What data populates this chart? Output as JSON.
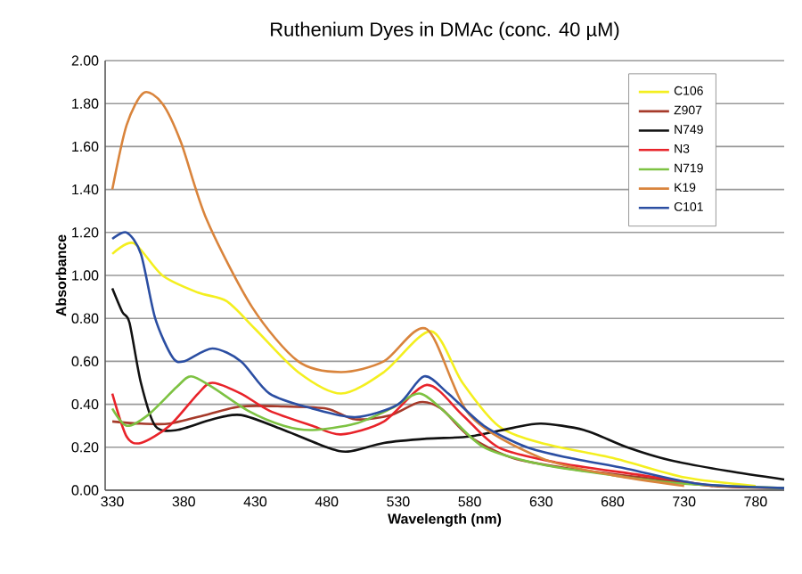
{
  "chart_data": {
    "type": "line",
    "title": "Ruthenium Dyes in DMAc (conc. 40 µM)",
    "xlabel": "Wavelength (nm)",
    "ylabel": "Absorbance",
    "xlim": [
      325,
      800
    ],
    "ylim": [
      0,
      2
    ],
    "xticks": [
      330,
      380,
      430,
      480,
      530,
      580,
      630,
      680,
      730,
      780
    ],
    "yticks": [
      {
        "value": 0,
        "label": "0.00"
      },
      {
        "value": 0.2,
        "label": "0.20"
      },
      {
        "value": 0.4,
        "label": "0.40"
      },
      {
        "value": 0.6,
        "label": "0.60"
      },
      {
        "value": 0.8,
        "label": "0.80"
      },
      {
        "value": 1,
        "label": "1.00"
      },
      {
        "value": 1.2,
        "label": "1.20"
      },
      {
        "value": 1.4,
        "label": "1.40"
      },
      {
        "value": 1.6,
        "label": "1.60"
      },
      {
        "value": 1.8,
        "label": "1.80"
      },
      {
        "value": 2,
        "label": "2.00"
      }
    ],
    "grid": "y",
    "legend": "top right",
    "marker": "none",
    "line_style": "solid",
    "series": [
      {
        "name": "C106",
        "color": "#f4ef1f",
        "x": [
          330,
          345,
          365,
          390,
          410,
          430,
          460,
          490,
          520,
          553,
          575,
          600,
          630,
          680,
          730,
          780
        ],
        "values": [
          1.1,
          1.15,
          1.0,
          0.92,
          0.88,
          0.75,
          0.55,
          0.45,
          0.55,
          0.74,
          0.5,
          0.3,
          0.22,
          0.15,
          0.06,
          0.02
        ]
      },
      {
        "name": "Z907",
        "color": "#a63a2a",
        "x": [
          330,
          350,
          370,
          395,
          420,
          450,
          480,
          500,
          525,
          545,
          560,
          580,
          610,
          650,
          700,
          750,
          800
        ],
        "values": [
          0.32,
          0.31,
          0.31,
          0.35,
          0.39,
          0.39,
          0.38,
          0.33,
          0.35,
          0.41,
          0.38,
          0.25,
          0.15,
          0.1,
          0.06,
          0.02,
          0.01
        ]
      },
      {
        "name": "N749",
        "color": "#111111",
        "x": [
          330,
          337,
          342,
          350,
          360,
          375,
          400,
          420,
          450,
          480,
          495,
          520,
          550,
          580,
          610,
          630,
          660,
          690,
          720,
          760,
          800
        ],
        "values": [
          0.94,
          0.83,
          0.78,
          0.5,
          0.3,
          0.28,
          0.33,
          0.35,
          0.28,
          0.2,
          0.18,
          0.22,
          0.24,
          0.25,
          0.29,
          0.31,
          0.28,
          0.2,
          0.14,
          0.09,
          0.05
        ]
      },
      {
        "name": "N3",
        "color": "#e8232a",
        "x": [
          330,
          340,
          350,
          370,
          390,
          400,
          420,
          440,
          470,
          490,
          520,
          550,
          575,
          600,
          640,
          700,
          750
        ],
        "values": [
          0.45,
          0.25,
          0.22,
          0.3,
          0.45,
          0.5,
          0.45,
          0.37,
          0.3,
          0.26,
          0.32,
          0.49,
          0.35,
          0.2,
          0.13,
          0.07,
          0.02
        ]
      },
      {
        "name": "N719",
        "color": "#7dc242",
        "x": [
          330,
          340,
          355,
          375,
          385,
          400,
          425,
          450,
          470,
          500,
          525,
          545,
          565,
          590,
          630,
          680,
          730,
          800
        ],
        "values": [
          0.38,
          0.3,
          0.35,
          0.48,
          0.53,
          0.48,
          0.37,
          0.3,
          0.28,
          0.31,
          0.38,
          0.45,
          0.35,
          0.2,
          0.12,
          0.07,
          0.03,
          0.01
        ]
      },
      {
        "name": "K19",
        "color": "#d9843c",
        "x": [
          330,
          340,
          352,
          365,
          378,
          396,
          428,
          460,
          490,
          520,
          550,
          580,
          630,
          680,
          730
        ],
        "values": [
          1.4,
          1.7,
          1.85,
          1.8,
          1.62,
          1.26,
          0.85,
          0.6,
          0.55,
          0.6,
          0.75,
          0.35,
          0.15,
          0.07,
          0.02
        ]
      },
      {
        "name": "C101",
        "color": "#2b4ea2",
        "x": [
          330,
          340,
          350,
          360,
          372,
          380,
          400,
          420,
          440,
          470,
          500,
          530,
          548,
          565,
          590,
          620,
          650,
          690,
          740,
          800
        ],
        "values": [
          1.17,
          1.2,
          1.1,
          0.8,
          0.62,
          0.6,
          0.66,
          0.6,
          0.45,
          0.38,
          0.34,
          0.4,
          0.53,
          0.45,
          0.3,
          0.2,
          0.15,
          0.1,
          0.03,
          0.01
        ]
      }
    ]
  }
}
